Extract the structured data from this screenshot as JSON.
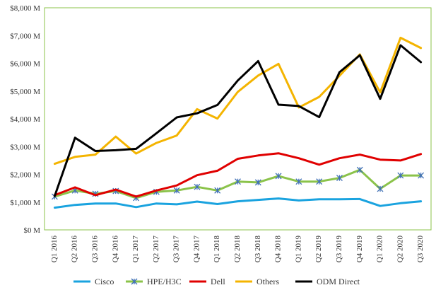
{
  "chart_data": {
    "type": "line",
    "title": "",
    "xlabel": "",
    "ylabel": "",
    "ylim": [
      0,
      8000
    ],
    "yticks": [
      0,
      1000,
      2000,
      3000,
      4000,
      5000,
      6000,
      7000,
      8000
    ],
    "ytick_labels": [
      "$0 M",
      "$1,000 M",
      "$2,000 M",
      "$3,000 M",
      "$4,000 M",
      "$5,000 M",
      "$6,000 M",
      "$7,000 M",
      "$8,000 M"
    ],
    "grid": false,
    "legend_position": "bottom",
    "plot_border_color": "#8BC34A",
    "categories": [
      "Q1 2016",
      "Q2 2016",
      "Q3 2016",
      "Q4 2016",
      "Q1 2017",
      "Q2 2017",
      "Q3 2017",
      "Q4 2017",
      "Q1 2018",
      "Q2 2018",
      "Q3 2018",
      "Q4 2018",
      "Q1 2019",
      "Q2 2019",
      "Q3 2019",
      "Q4 2019",
      "Q1 2020",
      "Q2 2020",
      "Q3 2020"
    ],
    "series": [
      {
        "name": "Cisco",
        "color": "#1AA3DF",
        "marker": "none",
        "values": [
          800,
          900,
          950,
          950,
          820,
          950,
          920,
          1020,
          930,
          1030,
          1080,
          1130,
          1060,
          1100,
          1100,
          1110,
          860,
          960,
          1030
        ]
      },
      {
        "name": "HPE/H3C",
        "color": "#8BC34A",
        "marker": "asterisk",
        "values": [
          1200,
          1420,
          1300,
          1400,
          1150,
          1370,
          1420,
          1550,
          1420,
          1740,
          1710,
          1940,
          1740,
          1740,
          1870,
          2160,
          1480,
          1960,
          1960
        ]
      },
      {
        "name": "Dell",
        "color": "#E00000",
        "marker": "none",
        "values": [
          1250,
          1530,
          1250,
          1450,
          1200,
          1420,
          1600,
          1970,
          2130,
          2560,
          2680,
          2760,
          2580,
          2350,
          2580,
          2710,
          2530,
          2500,
          2730
        ]
      },
      {
        "name": "Others",
        "color": "#F4B400",
        "marker": "none",
        "values": [
          2380,
          2630,
          2710,
          3360,
          2750,
          3130,
          3400,
          4350,
          4010,
          4970,
          5560,
          5980,
          4410,
          4790,
          5550,
          6320,
          4950,
          6920,
          6550
        ]
      },
      {
        "name": "ODM Direct",
        "color": "#000000",
        "marker": "none",
        "values": [
          1220,
          3320,
          2840,
          2870,
          2920,
          3480,
          4050,
          4200,
          4500,
          5380,
          6080,
          4510,
          4460,
          4060,
          5680,
          6290,
          4720,
          6650,
          6040
        ]
      }
    ]
  }
}
